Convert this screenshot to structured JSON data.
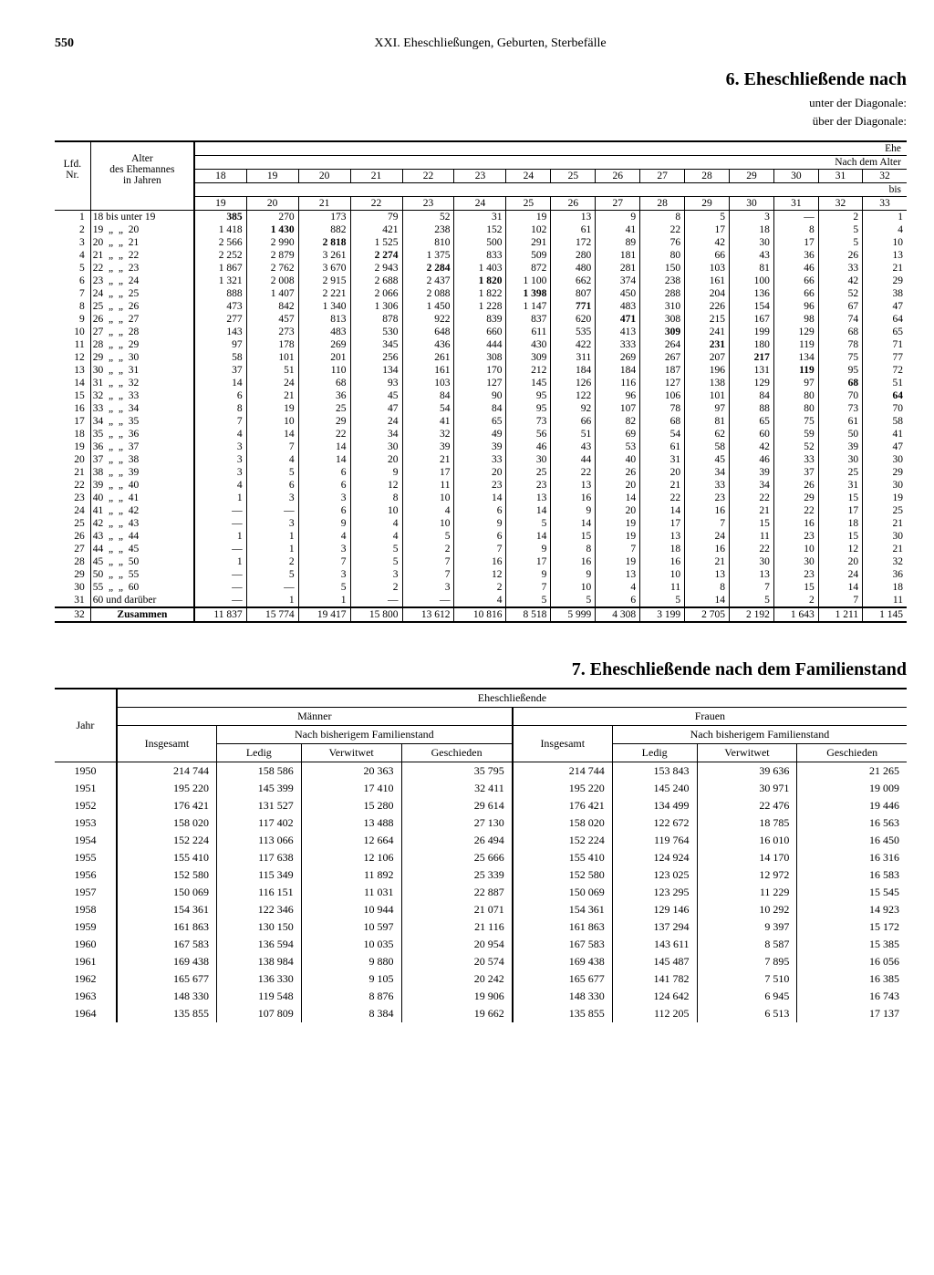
{
  "page_number": "550",
  "chapter_title": "XXI. Eheschließungen, Geburten, Sterbefälle",
  "section6_title": "6. Eheschließende nach",
  "subtitle_under": "unter der Diagonale:",
  "subtitle_over": "über der Diagonale:",
  "lfd_label": "Lfd.\nNr.",
  "alter_label": "Alter\ndes Ehemannes\nin Jahren",
  "ehe_label": "Ehe",
  "nach_alter_label": "Nach dem Alter",
  "bis_label": "bis",
  "top_ages": [
    "18",
    "19",
    "20",
    "21",
    "22",
    "23",
    "24",
    "25",
    "26",
    "27",
    "28",
    "29",
    "30",
    "31",
    "32"
  ],
  "bottom_ages": [
    "19",
    "20",
    "21",
    "22",
    "23",
    "24",
    "25",
    "26",
    "27",
    "28",
    "29",
    "30",
    "31",
    "32",
    "33"
  ],
  "row_labels": [
    "18 bis unter 19",
    "19  „  „  20",
    "20  „  „  21",
    "21  „  „  22",
    "22  „  „  23",
    "23  „  „  24",
    "24  „  „  25",
    "25  „  „  26",
    "26  „  „  27",
    "27  „  „  28",
    "28  „  „  29",
    "29  „  „  30",
    "30  „  „  31",
    "31  „  „  32",
    "32  „  „  33",
    "33  „  „  34",
    "34  „  „  35",
    "35  „  „  36",
    "36  „  „  37",
    "37  „  „  38",
    "38  „  „  39",
    "39  „  „  40",
    "40  „  „  41",
    "41  „  „  42",
    "42  „  „  43",
    "43  „  „  44",
    "44  „  „  45",
    "45  „  „  50",
    "50  „  „  55",
    "55  „  „  60",
    "60 und darüber"
  ],
  "zusammen_label": "Zusammen",
  "table6_data": [
    [
      "385",
      "270",
      "173",
      "79",
      "52",
      "31",
      "19",
      "13",
      "9",
      "8",
      "5",
      "3",
      "—",
      "2",
      "1"
    ],
    [
      "1 418",
      "1 430",
      "882",
      "421",
      "238",
      "152",
      "102",
      "61",
      "41",
      "22",
      "17",
      "18",
      "8",
      "5",
      "4"
    ],
    [
      "2 566",
      "2 990",
      "2 818",
      "1 525",
      "810",
      "500",
      "291",
      "172",
      "89",
      "76",
      "42",
      "30",
      "17",
      "5",
      "10"
    ],
    [
      "2 252",
      "2 879",
      "3 261",
      "2 274",
      "1 375",
      "833",
      "509",
      "280",
      "181",
      "80",
      "66",
      "43",
      "36",
      "26",
      "13"
    ],
    [
      "1 867",
      "2 762",
      "3 670",
      "2 943",
      "2 284",
      "1 403",
      "872",
      "480",
      "281",
      "150",
      "103",
      "81",
      "46",
      "33",
      "21"
    ],
    [
      "1 321",
      "2 008",
      "2 915",
      "2 688",
      "2 437",
      "1 820",
      "1 100",
      "662",
      "374",
      "238",
      "161",
      "100",
      "66",
      "42",
      "29"
    ],
    [
      "888",
      "1 407",
      "2 221",
      "2 066",
      "2 088",
      "1 822",
      "1 398",
      "807",
      "450",
      "288",
      "204",
      "136",
      "66",
      "52",
      "38"
    ],
    [
      "473",
      "842",
      "1 340",
      "1 306",
      "1 450",
      "1 228",
      "1 147",
      "771",
      "483",
      "310",
      "226",
      "154",
      "96",
      "67",
      "47"
    ],
    [
      "277",
      "457",
      "813",
      "878",
      "922",
      "839",
      "837",
      "620",
      "471",
      "308",
      "215",
      "167",
      "98",
      "74",
      "64"
    ],
    [
      "143",
      "273",
      "483",
      "530",
      "648",
      "660",
      "611",
      "535",
      "413",
      "309",
      "241",
      "199",
      "129",
      "68",
      "65"
    ],
    [
      "97",
      "178",
      "269",
      "345",
      "436",
      "444",
      "430",
      "422",
      "333",
      "264",
      "231",
      "180",
      "119",
      "78",
      "71"
    ],
    [
      "58",
      "101",
      "201",
      "256",
      "261",
      "308",
      "309",
      "311",
      "269",
      "267",
      "207",
      "217",
      "134",
      "75",
      "77"
    ],
    [
      "37",
      "51",
      "110",
      "134",
      "161",
      "170",
      "212",
      "184",
      "184",
      "187",
      "196",
      "131",
      "119",
      "95",
      "72"
    ],
    [
      "14",
      "24",
      "68",
      "93",
      "103",
      "127",
      "145",
      "126",
      "116",
      "127",
      "138",
      "129",
      "97",
      "68",
      "51"
    ],
    [
      "6",
      "21",
      "36",
      "45",
      "84",
      "90",
      "95",
      "122",
      "96",
      "106",
      "101",
      "84",
      "80",
      "70",
      "64"
    ],
    [
      "8",
      "19",
      "25",
      "47",
      "54",
      "84",
      "95",
      "92",
      "107",
      "78",
      "97",
      "88",
      "80",
      "73",
      "70"
    ],
    [
      "7",
      "10",
      "29",
      "24",
      "41",
      "65",
      "73",
      "66",
      "82",
      "68",
      "81",
      "65",
      "75",
      "61",
      "58"
    ],
    [
      "4",
      "14",
      "22",
      "34",
      "32",
      "49",
      "56",
      "51",
      "69",
      "54",
      "62",
      "60",
      "59",
      "50",
      "41"
    ],
    [
      "3",
      "7",
      "14",
      "30",
      "39",
      "39",
      "46",
      "43",
      "53",
      "61",
      "58",
      "42",
      "52",
      "39",
      "47"
    ],
    [
      "3",
      "4",
      "14",
      "20",
      "21",
      "33",
      "30",
      "44",
      "40",
      "31",
      "45",
      "46",
      "33",
      "30",
      "30"
    ],
    [
      "3",
      "5",
      "6",
      "9",
      "17",
      "20",
      "25",
      "22",
      "26",
      "20",
      "34",
      "39",
      "37",
      "25",
      "29"
    ],
    [
      "4",
      "6",
      "6",
      "12",
      "11",
      "23",
      "23",
      "13",
      "20",
      "21",
      "33",
      "34",
      "26",
      "31",
      "30"
    ],
    [
      "1",
      "3",
      "3",
      "8",
      "10",
      "14",
      "13",
      "16",
      "14",
      "22",
      "23",
      "22",
      "29",
      "15",
      "19"
    ],
    [
      "—",
      "—",
      "6",
      "10",
      "4",
      "6",
      "14",
      "9",
      "20",
      "14",
      "16",
      "21",
      "22",
      "17",
      "25"
    ],
    [
      "—",
      "3",
      "9",
      "4",
      "10",
      "9",
      "5",
      "14",
      "19",
      "17",
      "7",
      "15",
      "16",
      "18",
      "21"
    ],
    [
      "1",
      "1",
      "4",
      "4",
      "5",
      "6",
      "14",
      "15",
      "19",
      "13",
      "24",
      "11",
      "23",
      "15",
      "30"
    ],
    [
      "—",
      "1",
      "3",
      "5",
      "2",
      "7",
      "9",
      "8",
      "7",
      "18",
      "16",
      "22",
      "10",
      "12",
      "21"
    ],
    [
      "1",
      "2",
      "7",
      "5",
      "7",
      "16",
      "17",
      "16",
      "19",
      "16",
      "21",
      "30",
      "30",
      "20",
      "32"
    ],
    [
      "—",
      "5",
      "3",
      "3",
      "7",
      "12",
      "9",
      "9",
      "13",
      "10",
      "13",
      "13",
      "23",
      "24",
      "36"
    ],
    [
      "—",
      "—",
      "5",
      "2",
      "3",
      "2",
      "7",
      "10",
      "4",
      "11",
      "8",
      "7",
      "15",
      "14",
      "18"
    ],
    [
      "—",
      "1",
      "1",
      "—",
      "—",
      "4",
      "5",
      "5",
      "6",
      "5",
      "14",
      "5",
      "2",
      "7",
      "11"
    ]
  ],
  "diag_positions": [
    0,
    1,
    2,
    3,
    4,
    5,
    6,
    7,
    8,
    9,
    10,
    11,
    12,
    13,
    14
  ],
  "zusammen_row": [
    "11 837",
    "15 774",
    "19 417",
    "15 800",
    "13 612",
    "10 816",
    "8 518",
    "5 999",
    "4 308",
    "3 199",
    "2 705",
    "2 192",
    "1 643",
    "1 211",
    "1 145"
  ],
  "section7_title": "7. Eheschließende nach dem Familienstand",
  "fam_jahr_label": "Jahr",
  "fam_eheschliessende": "Eheschließende",
  "fam_maenner": "Männer",
  "fam_frauen": "Frauen",
  "fam_insgesamt": "Insgesamt",
  "fam_nach_bisher": "Nach bisherigem Familienstand",
  "fam_ledig": "Ledig",
  "fam_verwitwet": "Verwitwet",
  "fam_geschieden": "Geschieden",
  "fam_years": [
    "1950",
    "1951",
    "1952",
    "1953",
    "1954",
    "1955",
    "1956",
    "1957",
    "1958",
    "1959",
    "1960",
    "1961",
    "1962",
    "1963",
    "1964"
  ],
  "fam_data": [
    [
      "214 744",
      "158 586",
      "20 363",
      "35 795",
      "214 744",
      "153 843",
      "39 636",
      "21 265"
    ],
    [
      "195 220",
      "145 399",
      "17 410",
      "32 411",
      "195 220",
      "145 240",
      "30 971",
      "19 009"
    ],
    [
      "176 421",
      "131 527",
      "15 280",
      "29 614",
      "176 421",
      "134 499",
      "22 476",
      "19 446"
    ],
    [
      "158 020",
      "117 402",
      "13 488",
      "27 130",
      "158 020",
      "122 672",
      "18 785",
      "16 563"
    ],
    [
      "152 224",
      "113 066",
      "12 664",
      "26 494",
      "152 224",
      "119 764",
      "16 010",
      "16 450"
    ],
    [
      "155 410",
      "117 638",
      "12 106",
      "25 666",
      "155 410",
      "124 924",
      "14 170",
      "16 316"
    ],
    [
      "152 580",
      "115 349",
      "11 892",
      "25 339",
      "152 580",
      "123 025",
      "12 972",
      "16 583"
    ],
    [
      "150 069",
      "116 151",
      "11 031",
      "22 887",
      "150 069",
      "123 295",
      "11 229",
      "15 545"
    ],
    [
      "154 361",
      "122 346",
      "10 944",
      "21 071",
      "154 361",
      "129 146",
      "10 292",
      "14 923"
    ],
    [
      "161 863",
      "130 150",
      "10 597",
      "21 116",
      "161 863",
      "137 294",
      "9 397",
      "15 172"
    ],
    [
      "167 583",
      "136 594",
      "10 035",
      "20 954",
      "167 583",
      "143 611",
      "8 587",
      "15 385"
    ],
    [
      "169 438",
      "138 984",
      "9 880",
      "20 574",
      "169 438",
      "145 487",
      "7 895",
      "16 056"
    ],
    [
      "165 677",
      "136 330",
      "9 105",
      "20 242",
      "165 677",
      "141 782",
      "7 510",
      "16 385"
    ],
    [
      "148 330",
      "119 548",
      "8 876",
      "19 906",
      "148 330",
      "124 642",
      "6 945",
      "16 743"
    ],
    [
      "135 855",
      "107 809",
      "8 384",
      "19 662",
      "135 855",
      "112 205",
      "6 513",
      "17 137"
    ]
  ]
}
